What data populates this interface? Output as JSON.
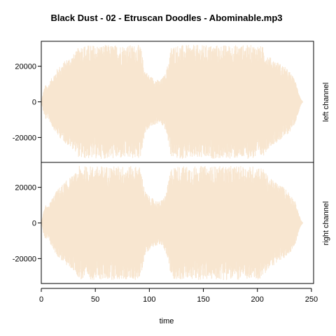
{
  "chart_data": {
    "type": "area",
    "title": "Black Dust - 02 - Etruscan Doodles - Abominable.mp3",
    "xlabel": "time",
    "xlim": [
      0,
      252
    ],
    "ylim": [
      -34000,
      34000
    ],
    "x_ticks": [
      0,
      50,
      100,
      150,
      200,
      250
    ],
    "y_ticks": [
      20000,
      0,
      -20000
    ],
    "waveform_color": "#f8e6d0",
    "panels": [
      {
        "label": "left channel",
        "amplitude_envelope": {
          "x": [
            0,
            2,
            4,
            6,
            10,
            15,
            20,
            25,
            30,
            33,
            35,
            40,
            45,
            50,
            55,
            60,
            65,
            70,
            75,
            80,
            85,
            90,
            92,
            94,
            96,
            100,
            105,
            110,
            115,
            118,
            120,
            125,
            130,
            140,
            150,
            160,
            170,
            180,
            190,
            200,
            205,
            208,
            212,
            220,
            225,
            230,
            235,
            238,
            240,
            242
          ],
          "peak": [
            0,
            6000,
            10000,
            9000,
            14000,
            19000,
            22000,
            25000,
            27000,
            29000,
            32000,
            32000,
            32000,
            32000,
            32000,
            32000,
            32000,
            32000,
            32000,
            32000,
            32000,
            32000,
            31000,
            24000,
            18000,
            15000,
            13000,
            12000,
            16000,
            24000,
            31000,
            32000,
            32000,
            32000,
            32000,
            32000,
            32000,
            32000,
            32000,
            32000,
            31000,
            28000,
            25000,
            22000,
            20000,
            17000,
            12000,
            6000,
            2000,
            0
          ]
        }
      },
      {
        "label": "right channel",
        "amplitude_envelope": {
          "x": [
            0,
            2,
            4,
            6,
            10,
            15,
            20,
            25,
            30,
            33,
            35,
            40,
            45,
            50,
            55,
            60,
            65,
            70,
            75,
            80,
            85,
            90,
            92,
            94,
            96,
            100,
            105,
            110,
            115,
            118,
            120,
            125,
            130,
            140,
            150,
            160,
            170,
            180,
            190,
            200,
            205,
            208,
            212,
            220,
            225,
            230,
            235,
            238,
            240,
            242
          ],
          "peak": [
            0,
            6000,
            10000,
            9000,
            14000,
            19000,
            22000,
            25000,
            27000,
            29000,
            32000,
            32000,
            32000,
            32000,
            32000,
            32000,
            32000,
            32000,
            32000,
            32000,
            32000,
            32000,
            31000,
            24000,
            18000,
            15000,
            13000,
            12000,
            16000,
            24000,
            31000,
            32000,
            32000,
            32000,
            32000,
            32000,
            32000,
            32000,
            32000,
            32000,
            31000,
            28000,
            25000,
            22000,
            20000,
            17000,
            12000,
            6000,
            2000,
            0
          ]
        }
      }
    ]
  }
}
